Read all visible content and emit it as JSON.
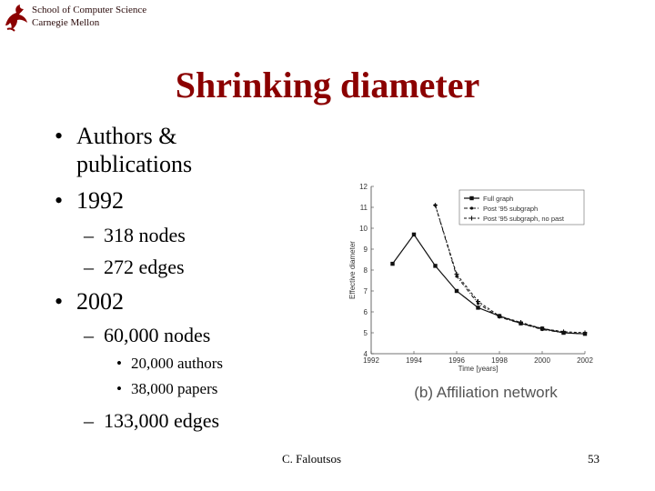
{
  "header": {
    "line1": "School of Computer Science",
    "line2": "Carnegie Mellon"
  },
  "title": "Shrinking diameter",
  "bullets": {
    "b1_line1": "Authors &",
    "b1_line2": "publications",
    "b2": "1992",
    "b2_sub1": "318 nodes",
    "b2_sub2": "272 edges",
    "b3": "2002",
    "b3_sub1": "60,000 nodes",
    "b3_sub1_a": "20,000 authors",
    "b3_sub1_b": "38,000 papers",
    "b3_sub2": "133,000 edges"
  },
  "markers": {
    "bullet": "•",
    "dash": "–"
  },
  "chart_data": {
    "type": "line",
    "xlabel": "Time [years]",
    "ylabel": "Effective diameter",
    "xlim": [
      1992,
      2002
    ],
    "ylim": [
      4,
      12
    ],
    "xticks": [
      1992,
      1994,
      1996,
      1998,
      2000,
      2002
    ],
    "yticks": [
      4,
      5,
      6,
      7,
      8,
      9,
      10,
      11,
      12
    ],
    "caption": "(b) Affiliation network",
    "legend_position": "top-right",
    "grid": false,
    "series": [
      {
        "name": "Full graph",
        "style": "solid-square",
        "x": [
          1993,
          1994,
          1995,
          1996,
          1997,
          1998,
          1999,
          2000,
          2001,
          2002
        ],
        "y": [
          8.3,
          9.7,
          8.2,
          7.0,
          6.2,
          5.8,
          5.45,
          5.2,
          5.0,
          4.95
        ]
      },
      {
        "name": "Post '95 subgraph",
        "style": "dashdot-circle",
        "x": [
          1995,
          1996,
          1997,
          1998,
          1999,
          2000,
          2001,
          2002
        ],
        "y": [
          11.1,
          7.7,
          6.4,
          5.75,
          5.45,
          5.15,
          5.0,
          4.95
        ]
      },
      {
        "name": "Post '95 subgraph, no past",
        "style": "dashed-plus",
        "x": [
          1995,
          1996,
          1997,
          1998,
          1999,
          2000,
          2001,
          2002
        ],
        "y": [
          11.1,
          7.8,
          6.5,
          5.8,
          5.5,
          5.2,
          5.05,
          5.0
        ]
      }
    ]
  },
  "footer": {
    "author": "C. Faloutsos",
    "page": "53"
  }
}
